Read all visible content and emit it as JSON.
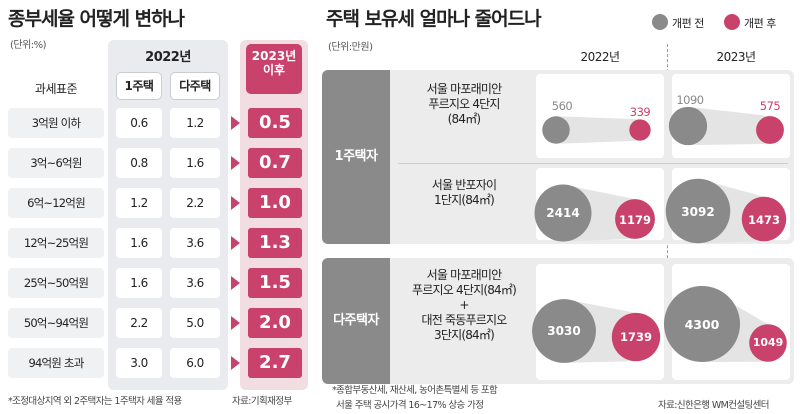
{
  "left": {
    "title": "종부세율 어떻게 변하나",
    "unit": "(단위:%)",
    "year_2022": "2022년",
    "year_2023_line1": "2023년",
    "year_2023_line2": "이후",
    "col_label": "과세표준",
    "col_one": "1주택",
    "col_multi": "다주택",
    "rows": [
      {
        "bracket": "3억원 이하",
        "one": "0.6",
        "multi": "1.2",
        "new": "0.5"
      },
      {
        "bracket": "3억~6억원",
        "one": "0.8",
        "multi": "1.6",
        "new": "0.7"
      },
      {
        "bracket": "6억~12억원",
        "one": "1.2",
        "multi": "2.2",
        "new": "1.0"
      },
      {
        "bracket": "12억~25억원",
        "one": "1.6",
        "multi": "3.6",
        "new": "1.3"
      },
      {
        "bracket": "25억~50억원",
        "one": "1.6",
        "multi": "3.6",
        "new": "1.5"
      },
      {
        "bracket": "50억~94억원",
        "one": "2.2",
        "multi": "5.0",
        "new": "2.0"
      },
      {
        "bracket": "94억원 초과",
        "one": "3.0",
        "multi": "6.0",
        "new": "2.7"
      }
    ],
    "footnote": "*조정대상지역 외 2주택자는 1주택자 세율 적용",
    "source": "자료:기획재정부"
  },
  "right": {
    "title": "주택 보유세 얼마나 줄어드나",
    "unit": "(단위:만원)",
    "legend_before": "개편 전",
    "legend_after": "개편 후",
    "year_a": "2022년",
    "year_b": "2023년",
    "group_one": "1주택자",
    "group_multi": "다주택자",
    "props": {
      "p1_line1": "서울 마포래미안",
      "p1_line2": "푸르지오 4단지",
      "p1_line3": "(84㎡)",
      "p2_line1": "서울 반포자이",
      "p2_line2": "1단지(84㎡)",
      "p3_line1": "서울 마포래미안",
      "p3_line2": "푸르지오 4단지(84㎡)",
      "p3_plus": "+",
      "p3_line3": "대전 죽동푸르지오",
      "p3_line4": "3단지(84㎡)"
    },
    "values": {
      "p1_2022_before": "560",
      "p1_2022_after": "339",
      "p1_2023_before": "1090",
      "p1_2023_after": "575",
      "p2_2022_before": "2414",
      "p2_2022_after": "1179",
      "p2_2023_before": "3092",
      "p2_2023_after": "1473",
      "p3_2022_before": "3030",
      "p3_2022_after": "1739",
      "p3_2023_before": "4300",
      "p3_2023_after": "1049"
    },
    "footnote_line1": "*종합부동산세, 재산세, 농어촌특별세 등 포함",
    "footnote_line2": "서울 주택 공시가격 16~17% 상승 가정",
    "source": "자료:신한은행 WM컨설팅센터"
  },
  "colors": {
    "accent": "#c8426b",
    "gray": "#8a8a8a"
  }
}
